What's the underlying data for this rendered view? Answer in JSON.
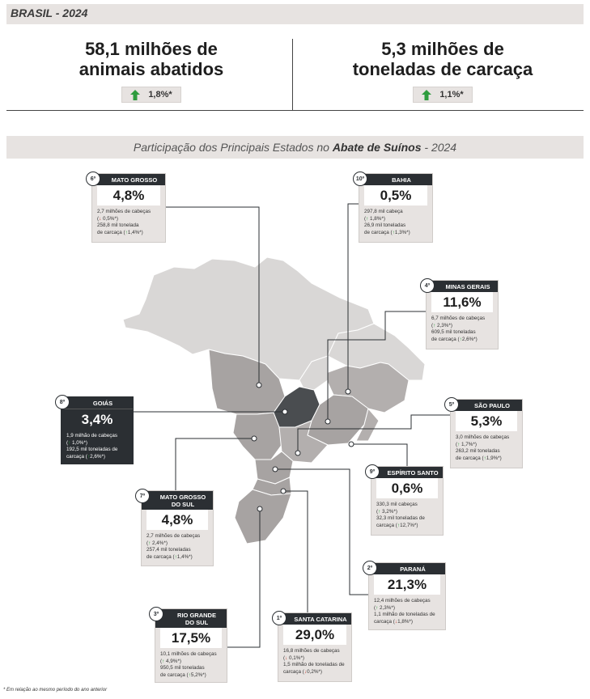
{
  "header": {
    "title": "BRASIL - 2024"
  },
  "metrics": [
    {
      "value": "58,1 milhões de\nanimais abatidos",
      "change": "1,8%*"
    },
    {
      "value": "5,3 milhões de\ntoneladas de carcaça",
      "change": "1,1%*"
    }
  ],
  "subtitle": {
    "prefix": "Participação dos Principais Estados no ",
    "bold": "Abate de Suínos",
    "suffix": "  - 2024"
  },
  "states": [
    {
      "rank": "6º",
      "name": "MATO GROSSO",
      "pct": "4,8%",
      "l1": "2,7 milhões de cabeças",
      "c1": "0,5%*",
      "d1": "down",
      "l2": "258,8 mil tonelada",
      "l3": "de carcaça (",
      "c2": "1,4%*)",
      "d2": "up"
    },
    {
      "rank": "10º",
      "name": "BAHIA",
      "pct": "0,5%",
      "l1": "297,8 mil cabeça",
      "c1": "1,8%*)",
      "d1": "up",
      "l2": "26,9 mil toneladas",
      "l3": "de carcaça (",
      "c2": "1,3%*)",
      "d2": "up"
    },
    {
      "rank": "4º",
      "name": "MINAS GERAIS",
      "pct": "11,6%",
      "l1": "6,7 milhões de cabeças",
      "c1": "2,3%*)",
      "d1": "up",
      "l2": "609,5 mil toneladas",
      "l3": "de carcaça (",
      "c2": "2,6%*)",
      "d2": "up"
    },
    {
      "rank": "5º",
      "name": "SÃO PAULO",
      "pct": "5,3%",
      "l1": "3,0 milhões de cabeças",
      "c1": "1,7%*)",
      "d1": "up",
      "l2": "263,2 mil toneladas",
      "l3": "de carcaça (",
      "c2": "1,9%*)",
      "d2": "up"
    },
    {
      "rank": "8º",
      "name": "GOIÁS",
      "pct": "3,4%",
      "l1": "1,9 milhão de cabeças",
      "c1": "1,0%*)",
      "d1": "up",
      "l2": "192,5 mil toneladas de",
      "l3": "carcaça (",
      "c2": "2,6%*)",
      "d2": "up"
    },
    {
      "rank": "9º",
      "name": "ESPÍRITO SANTO",
      "pct": "0,6%",
      "l1": "330,3 mil cabeças",
      "c1": "3,2%*)",
      "d1": "up",
      "l2": "32,3 mil toneladas de",
      "l3": "carcaça (",
      "c2": "12,7%*)",
      "d2": "up"
    },
    {
      "rank": "7º",
      "name": "MATO GROSSO\nDO SUL",
      "pct": "4,8%",
      "l1": "2,7 milhões de cabeças",
      "c1": "2,4%*)",
      "d1": "up",
      "l2": "257,4 mil toneladas",
      "l3": "de carcaça (",
      "c2": "1,4%*)",
      "d2": "up"
    },
    {
      "rank": "2º",
      "name": "PARANÁ",
      "pct": "21,3%",
      "l1": "12,4 milhões de cabeças",
      "c1": "2,3%*)",
      "d1": "up",
      "l2": "1,1 milhão de toneladas de",
      "l3": "carcaça (",
      "c2": "1,8%*)",
      "d2": "down"
    },
    {
      "rank": "3º",
      "name": "RIO GRANDE\nDO SUL",
      "pct": "17,5%",
      "l1": "10,1 milhões de cabeças",
      "c1": "4,9%*)",
      "d1": "up",
      "l2": "950,5 mil toneladas",
      "l3": "de carcaça (",
      "c2": "5,2%*)",
      "d2": "up"
    },
    {
      "rank": "1º",
      "name": "SANTA CATARINA",
      "pct": "29,0%",
      "l1": "16,8 milhões de cabeças",
      "c1": "0,1%*)",
      "d1": "down",
      "l2": "1,5 milhão de toneladas de",
      "l3": "carcaça (",
      "c2": "0,2%*)",
      "d2": "down"
    }
  ],
  "footnote": "* Em relação ao mesmo período do ano anterior",
  "colors": {
    "dark": "#2b2f33",
    "panel": "#e7e3e1",
    "up": "#2e9c3e",
    "down": "#c0392b"
  }
}
